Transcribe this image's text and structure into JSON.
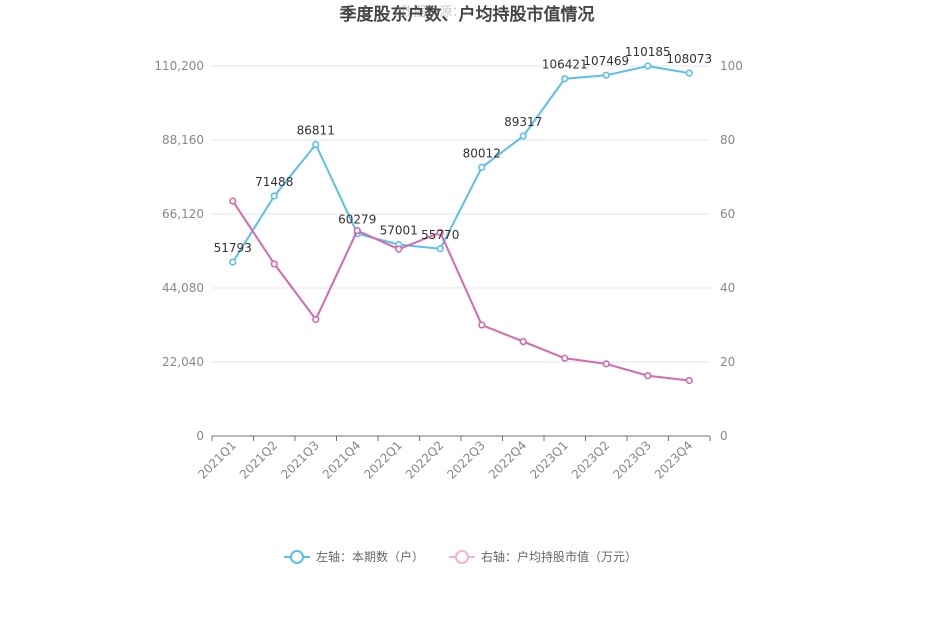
{
  "chart_data": {
    "type": "line",
    "title": "季度股东户数、户均持股市值情况",
    "watermark": "数据来源：",
    "categories": [
      "2021Q1",
      "2021Q2",
      "2021Q3",
      "2021Q4",
      "2022Q1",
      "2022Q2",
      "2022Q3",
      "2022Q4",
      "2023Q1",
      "2023Q2",
      "2023Q3",
      "2023Q4"
    ],
    "y_left": {
      "ticks": [
        "0",
        "22,040",
        "44,080",
        "66,120",
        "88,160",
        "110,200"
      ],
      "ylim": [
        0,
        110200
      ]
    },
    "y_right": {
      "ticks": [
        "0",
        "20",
        "40",
        "60",
        "80",
        "100"
      ],
      "ylim": [
        0,
        100
      ]
    },
    "grid": true,
    "legend_position": "bottom",
    "series": [
      {
        "name": "左轴：本期数（户）",
        "axis": "left",
        "color": "#5bbfee",
        "values": [
          51793,
          71488,
          86811,
          60279,
          57001,
          55770,
          80012,
          89317,
          106421,
          107469,
          110185,
          108073
        ],
        "labels": [
          "51793",
          "71488",
          "86811",
          "60279",
          "57001",
          "55770",
          "80012",
          "89317",
          "106421",
          "107469",
          "110185",
          "108073"
        ]
      },
      {
        "name": "右轴：户均持股市值（万元）",
        "axis": "right",
        "color": "#d36aab",
        "values": [
          63.5,
          46.5,
          31.5,
          55.5,
          50.5,
          55.0,
          30.0,
          25.5,
          21.0,
          19.5,
          16.3,
          15.0
        ]
      }
    ]
  }
}
